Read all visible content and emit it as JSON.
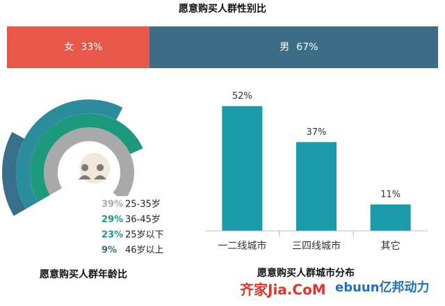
{
  "chart_data": [
    {
      "type": "stacked_bar",
      "title": "愿意购买人群性别比",
      "series": [
        {
          "name": "女",
          "color": "#e8584a",
          "values": [
            33
          ],
          "value_labels": [
            "33%"
          ]
        },
        {
          "name": "男",
          "color": "#3b6e86",
          "values": [
            67
          ],
          "value_labels": [
            "67%"
          ]
        }
      ],
      "xlim": [
        0,
        100
      ]
    },
    {
      "type": "radial_bar",
      "title": "愿意购买人群年龄比",
      "categories": [
        "25-35岁",
        "36-45岁",
        "25岁以下",
        "46岁以上"
      ],
      "values": [
        39,
        29,
        23,
        9
      ],
      "value_labels": [
        "39%",
        "29%",
        "23%",
        "9%"
      ],
      "colors": [
        "#a9a9a9",
        "#1d9a7d",
        "#2b8c9b",
        "#386f8a"
      ]
    },
    {
      "type": "bar",
      "title": "愿意购买人群城市分布",
      "categories": [
        "一二线城市",
        "三四线城市",
        "其它"
      ],
      "values": [
        52,
        37,
        11
      ],
      "value_labels": [
        "52%",
        "37%",
        "11%"
      ],
      "color": "#1b9aaa",
      "ylim": [
        0,
        60
      ]
    }
  ],
  "logos": [
    "齐家Jia.CoM",
    "ebuun亿邦动力"
  ]
}
